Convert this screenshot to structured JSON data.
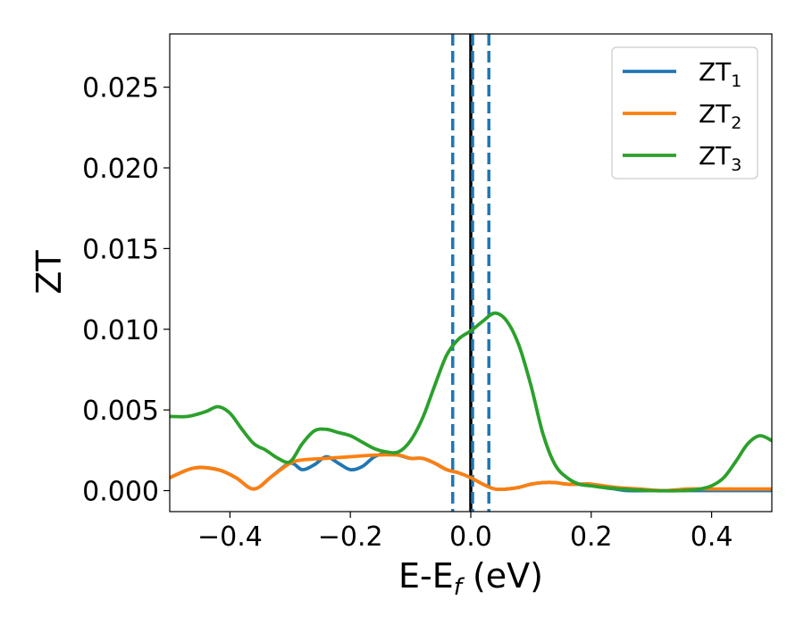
{
  "chart_data": {
    "type": "line",
    "xlabel_main": "E-E",
    "xlabel_sub": "f",
    "xlabel_unit": " (eV)",
    "ylabel": "ZT",
    "xlim": [
      -0.5,
      0.5
    ],
    "ylim": [
      -0.0013,
      0.0283
    ],
    "xticks": [
      -0.4,
      -0.2,
      0.0,
      0.2,
      0.4
    ],
    "xtick_labels": [
      "−0.4",
      "−0.2",
      "0.0",
      "0.2",
      "0.4"
    ],
    "yticks": [
      0.0,
      0.005,
      0.01,
      0.015,
      0.02,
      0.025
    ],
    "ytick_labels": [
      "0.000",
      "0.005",
      "0.010",
      "0.015",
      "0.020",
      "0.025"
    ],
    "legend_position": "top-right",
    "vlines": [
      {
        "x": 0.0,
        "color": "#000000",
        "style": "solid"
      },
      {
        "x": -0.03,
        "color": "#1f77b4",
        "style": "dashed"
      },
      {
        "x": 0.003,
        "color": "#1f77b4",
        "style": "dashed"
      },
      {
        "x": 0.03,
        "color": "#1f77b4",
        "style": "dashed"
      }
    ],
    "series": [
      {
        "name": "ZT",
        "sub": "1",
        "color": "#1f77b4",
        "x": [
          -0.5,
          -0.46,
          -0.42,
          -0.39,
          -0.36,
          -0.33,
          -0.3,
          -0.28,
          -0.26,
          -0.24,
          -0.22,
          -0.2,
          -0.18,
          -0.16,
          -0.14,
          -0.12,
          -0.1,
          -0.08,
          -0.06,
          -0.04,
          -0.02,
          0.0,
          0.02,
          0.04,
          0.06,
          0.08,
          0.1,
          0.12,
          0.14,
          0.16,
          0.18,
          0.2,
          0.22,
          0.24,
          0.26,
          0.3,
          0.35,
          0.4,
          0.45,
          0.5
        ],
        "y": [
          0.0008,
          0.0014,
          0.0013,
          0.0008,
          0.0001,
          0.0009,
          0.0017,
          0.0013,
          0.0016,
          0.0021,
          0.0017,
          0.0013,
          0.0015,
          0.0021,
          0.0023,
          0.0022,
          0.002,
          0.002,
          0.0017,
          0.0013,
          0.0011,
          0.0008,
          0.0004,
          0.0001,
          0.0001,
          0.0002,
          0.0004,
          0.0005,
          0.0005,
          0.0004,
          0.0004,
          0.0004,
          0.0002,
          0.0001,
          0.0,
          0.0,
          0.0,
          0.0,
          0.0,
          0.0
        ]
      },
      {
        "name": "ZT",
        "sub": "2",
        "color": "#ff7f0e",
        "x": [
          -0.5,
          -0.46,
          -0.42,
          -0.39,
          -0.36,
          -0.33,
          -0.3,
          -0.28,
          -0.24,
          -0.2,
          -0.16,
          -0.12,
          -0.1,
          -0.08,
          -0.06,
          -0.04,
          -0.02,
          0.0,
          0.02,
          0.04,
          0.06,
          0.08,
          0.1,
          0.12,
          0.14,
          0.16,
          0.18,
          0.2,
          0.24,
          0.28,
          0.32,
          0.36,
          0.4,
          0.44,
          0.47,
          0.5
        ],
        "y": [
          0.0008,
          0.0014,
          0.0013,
          0.0008,
          0.0001,
          0.0009,
          0.0017,
          0.0019,
          0.002,
          0.0021,
          0.0022,
          0.0022,
          0.002,
          0.002,
          0.0017,
          0.0013,
          0.0011,
          0.0008,
          0.0004,
          0.0001,
          0.0001,
          0.0002,
          0.0004,
          0.0005,
          0.0005,
          0.0004,
          0.0004,
          0.0004,
          0.0002,
          0.0001,
          0.0,
          0.0001,
          0.0001,
          0.0001,
          0.0001,
          0.0001
        ]
      },
      {
        "name": "ZT",
        "sub": "3",
        "color": "#2ca02c",
        "x": [
          -0.5,
          -0.47,
          -0.44,
          -0.42,
          -0.4,
          -0.38,
          -0.36,
          -0.34,
          -0.32,
          -0.3,
          -0.28,
          -0.26,
          -0.24,
          -0.22,
          -0.2,
          -0.18,
          -0.16,
          -0.14,
          -0.12,
          -0.1,
          -0.08,
          -0.06,
          -0.04,
          -0.02,
          0.0,
          0.02,
          0.04,
          0.06,
          0.08,
          0.1,
          0.12,
          0.14,
          0.16,
          0.18,
          0.2,
          0.22,
          0.25,
          0.3,
          0.35,
          0.38,
          0.4,
          0.42,
          0.44,
          0.46,
          0.48,
          0.5
        ],
        "y": [
          0.0046,
          0.0046,
          0.0049,
          0.0052,
          0.0048,
          0.0038,
          0.0029,
          0.0025,
          0.002,
          0.0018,
          0.0029,
          0.0037,
          0.0038,
          0.0036,
          0.0034,
          0.003,
          0.0026,
          0.0024,
          0.0024,
          0.0031,
          0.0045,
          0.0065,
          0.0084,
          0.0094,
          0.0099,
          0.0105,
          0.011,
          0.0105,
          0.009,
          0.0065,
          0.0035,
          0.0016,
          0.0008,
          0.0004,
          0.0003,
          0.0002,
          0.0001,
          0.0,
          0.0,
          0.0001,
          0.0003,
          0.0008,
          0.0018,
          0.0029,
          0.0034,
          0.0031
        ]
      }
    ]
  }
}
